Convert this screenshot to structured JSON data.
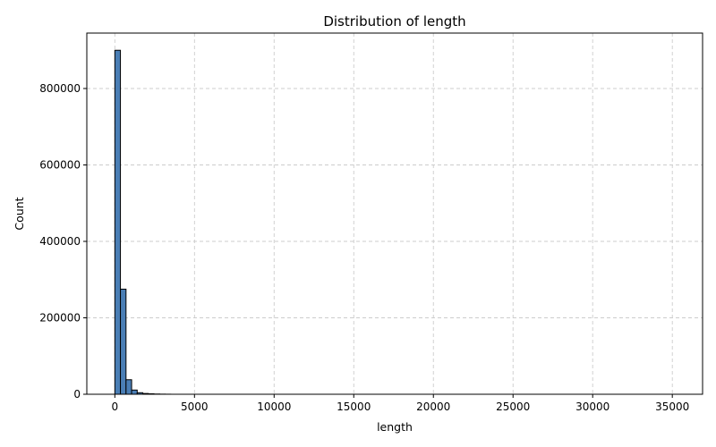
{
  "chart_data": {
    "type": "bar",
    "title": "Distribution of length",
    "xlabel": "length",
    "ylabel": "Count",
    "xlim": [
      -1760,
      36900
    ],
    "ylim": [
      0,
      945000
    ],
    "xticks": [
      0,
      5000,
      10000,
      15000,
      20000,
      25000,
      30000,
      35000
    ],
    "yticks": [
      0,
      200000,
      400000,
      600000,
      800000
    ],
    "grid": true,
    "bin_width": 351,
    "bins": [
      {
        "x": 0,
        "count": 900000
      },
      {
        "x": 351,
        "count": 275000
      },
      {
        "x": 702,
        "count": 38000
      },
      {
        "x": 1053,
        "count": 11000
      },
      {
        "x": 1404,
        "count": 4000
      },
      {
        "x": 1755,
        "count": 2000
      },
      {
        "x": 2106,
        "count": 1200
      },
      {
        "x": 2457,
        "count": 600
      },
      {
        "x": 2808,
        "count": 300
      },
      {
        "x": 3159,
        "count": 150
      }
    ],
    "bar_color": "#4a7eb5",
    "edge_color": "#000000",
    "grid_color": "#cccccc"
  }
}
